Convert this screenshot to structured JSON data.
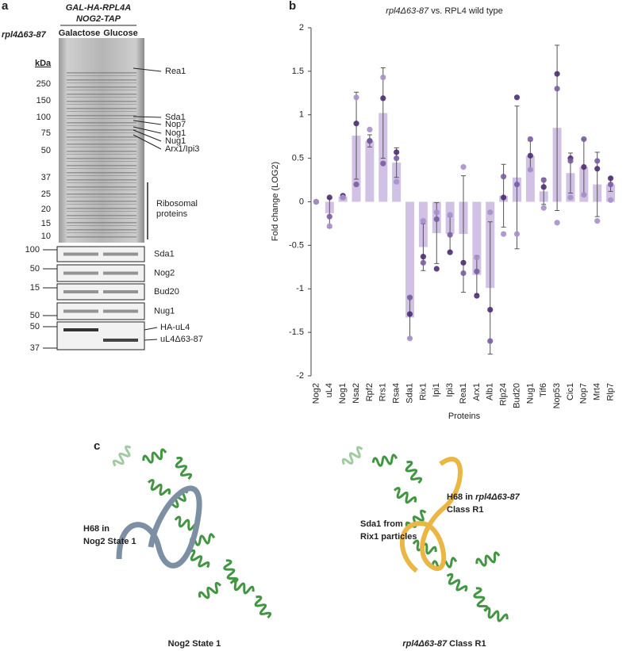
{
  "panel_a": {
    "label": "a",
    "strain": "rpl4Δ63-87",
    "construct": [
      "GAL-HA-RPL4A",
      "NOG2-TAP"
    ],
    "lanes": [
      "Galactose",
      "Glucose"
    ],
    "marker_unit": "kDa",
    "gel_markers": [
      250,
      150,
      100,
      75,
      50,
      37,
      25,
      20,
      15,
      10
    ],
    "gel_bands": [
      "Rea1",
      "Sda1",
      "Nop7",
      "Nog1",
      "Nug1",
      "Arx1/Ipi3"
    ],
    "gel_region": [
      "Ribosomal",
      "proteins"
    ],
    "blots": [
      {
        "markers": [
          100
        ],
        "label": "Sda1"
      },
      {
        "markers": [
          50
        ],
        "label": "Nog2"
      },
      {
        "markers": [
          15
        ],
        "label": "Bud20"
      },
      {
        "markers": [
          50
        ],
        "label": "Nug1"
      },
      {
        "markers": [
          50,
          37
        ],
        "bands": [
          "HA-uL4",
          "uL4Δ63-87"
        ]
      }
    ]
  },
  "chart_data": {
    "type": "bar",
    "panel": "b",
    "title": [
      "rpl4Δ63-87",
      "vs. RPL4 wild type"
    ],
    "xlabel": "Proteins",
    "ylabel": "Fold change (LOG2)",
    "categories": [
      "Nog2",
      "uL4",
      "Nog1",
      "Nsa2",
      "Rpf2",
      "Rrs1",
      "Rsa4",
      "Sda1",
      "Rix1",
      "Ipi1",
      "Ipi3",
      "Rea1",
      "Arx1",
      "Alb1",
      "Rlp24",
      "Bud20",
      "Nug1",
      "Tif6",
      "Nop53",
      "Cic1",
      "Nop7",
      "Mrt4",
      "Rlp7"
    ],
    "values": [
      0,
      -0.13,
      0.06,
      0.76,
      0.7,
      1.02,
      0.45,
      -1.33,
      -0.52,
      -0.36,
      -0.37,
      -0.37,
      -0.84,
      -0.99,
      0.07,
      0.28,
      0.53,
      0.12,
      0.85,
      0.33,
      0.4,
      0.2,
      0.2
    ],
    "errors": [
      0,
      0.17,
      0.02,
      0.5,
      0.07,
      0.52,
      0.17,
      0.24,
      0.27,
      0.35,
      0.2,
      0.67,
      0.22,
      0.76,
      0.36,
      0.82,
      0.17,
      0.15,
      0.95,
      0.23,
      0.32,
      0.37,
      0.08
    ],
    "color": "#c8b6e0",
    "replicates": [
      {
        "color": "#4e2d72",
        "values": [
          0,
          0.05,
          0.07,
          0.9,
          0.7,
          1.19,
          0.57,
          -1.29,
          -0.63,
          -0.77,
          -0.58,
          -0.7,
          -1.08,
          -1.24,
          0.05,
          1.2,
          0.53,
          0.17,
          1.47,
          0.5,
          0.4,
          0.38,
          0.27
        ]
      },
      {
        "color": "#7a5ea0",
        "values": [
          0,
          -0.17,
          0.05,
          0.2,
          0.7,
          0.44,
          0.5,
          -1.1,
          -0.7,
          -0.2,
          -0.38,
          -0.82,
          -0.8,
          -1.6,
          0.29,
          0.2,
          0.72,
          0.25,
          1.3,
          0.47,
          0.72,
          0.47,
          0.2
        ]
      },
      {
        "color": "#a690c8",
        "values": [
          0,
          -0.28,
          0.05,
          1.2,
          0.83,
          1.43,
          0.23,
          -1.57,
          -0.22,
          -0.12,
          -0.15,
          0.4,
          -0.64,
          -0.12,
          -0.37,
          -0.37,
          0.37,
          -0.07,
          -0.24,
          0.05,
          0.08,
          -0.22,
          0.02
        ]
      }
    ],
    "ylim": [
      -2,
      2
    ],
    "yticks": [
      -2,
      -1.5,
      -1,
      -0.5,
      0,
      0.5,
      1,
      1.5,
      2
    ]
  },
  "panel_c": {
    "label": "c",
    "left": {
      "helix": [
        "H68 in",
        "Nog2 State 1"
      ],
      "caption": "Nog2 State 1"
    },
    "right": {
      "helix": [
        "H68 in",
        "rpl4Δ63-87",
        "Class R1"
      ],
      "protein": [
        "Sda1 from",
        "Rix1 particles"
      ],
      "caption": [
        "rpl4Δ63-87",
        "Class R1"
      ]
    }
  }
}
